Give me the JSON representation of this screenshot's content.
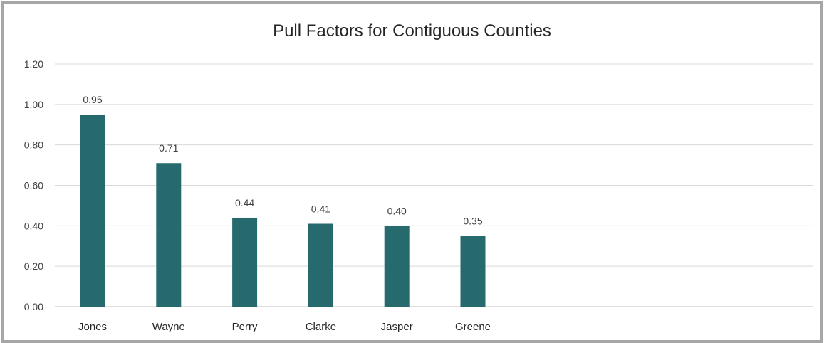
{
  "chart_data": {
    "type": "bar",
    "title": "Pull Factors for Contiguous Counties",
    "categories": [
      "Jones",
      "Wayne",
      "Perry",
      "Clarke",
      "Jasper",
      "Greene"
    ],
    "values": [
      0.95,
      0.71,
      0.44,
      0.41,
      0.4,
      0.35
    ],
    "data_labels": [
      "0.95",
      "0.71",
      "0.44",
      "0.41",
      "0.40",
      "0.35"
    ],
    "y_ticks": [
      "0.00",
      "0.20",
      "0.40",
      "0.60",
      "0.80",
      "1.00",
      "1.20"
    ],
    "xlabel": "",
    "ylabel": "",
    "ylim": [
      0,
      1.2
    ],
    "grid": true,
    "legend": "none",
    "bar_color": "#276a6e"
  }
}
